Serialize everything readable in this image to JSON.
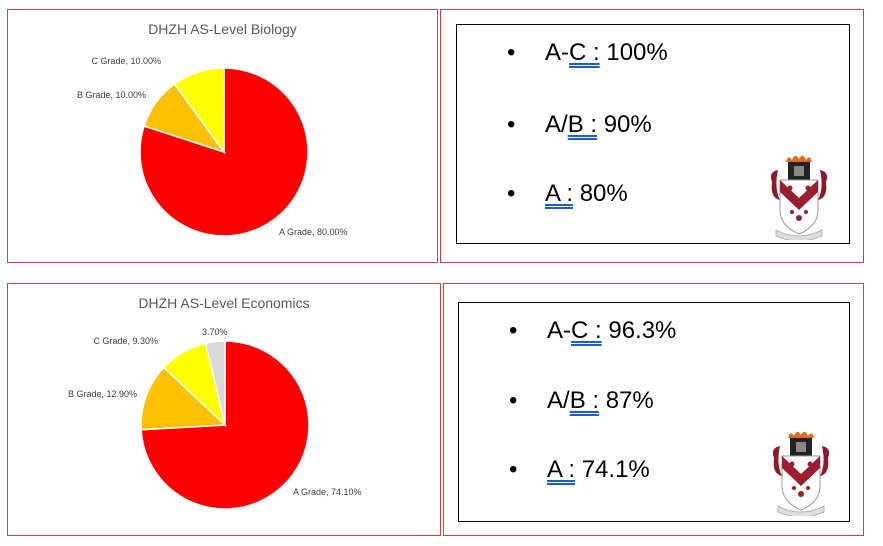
{
  "charts": {
    "bio": {
      "title": "DHZH AS-Level Biology",
      "labels": [
        "A Grade, 80.00%",
        "B Grade, 10.00%",
        "C Grade, 10.00%"
      ],
      "colors": [
        "#ff0000",
        "#ffc000",
        "#ffff00"
      ]
    },
    "eco": {
      "title": "DHZH AS-Level Economics",
      "labels": [
        "A Grade, 74.10%",
        "B Grade, 12.90%",
        "C Grade, 9.30%",
        "3.70%"
      ],
      "colors": [
        "#ff0000",
        "#ffc000",
        "#ffff00",
        "#d9d9d9"
      ]
    }
  },
  "chart_data": [
    {
      "type": "pie",
      "title": "DHZH AS-Level Biology",
      "categories": [
        "A Grade",
        "B Grade",
        "C Grade"
      ],
      "values": [
        80.0,
        10.0,
        10.0
      ]
    },
    {
      "type": "pie",
      "title": "DHZH AS-Level Economics",
      "categories": [
        "A Grade",
        "B Grade",
        "C Grade",
        ""
      ],
      "values": [
        74.1,
        12.9,
        9.3,
        3.7
      ]
    }
  ],
  "summary1": {
    "items": [
      {
        "pre": "A-",
        "u": "C :",
        "post": " 100%"
      },
      {
        "pre": "A/",
        "u": "B :",
        "post": " 90%"
      },
      {
        "pre": "",
        "u": "A :",
        "post": " 80%"
      }
    ]
  },
  "summary2": {
    "items": [
      {
        "pre": "A-",
        "u": "C :",
        "post": " 96.3%"
      },
      {
        "pre": "A/",
        "u": "B :",
        "post": " 87%"
      },
      {
        "pre": "",
        "u": "A :",
        "post": " 74.1%"
      }
    ]
  },
  "bullet_char": "•"
}
